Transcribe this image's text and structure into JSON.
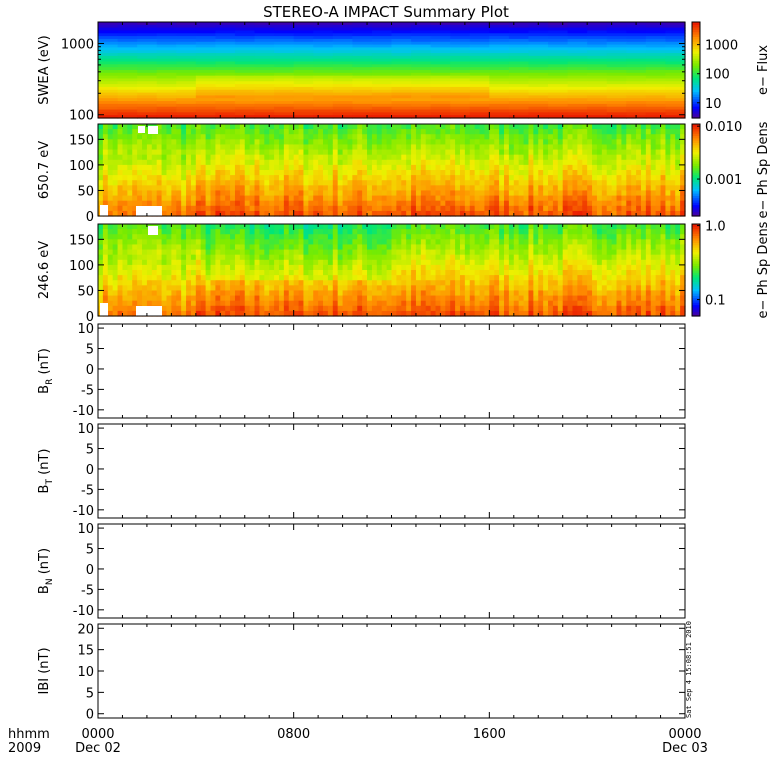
{
  "title": "STEREO-A IMPACT Summary Plot",
  "timestamp_stamp": "Sat Sep  4 15:08:51 2010",
  "x_axis": {
    "format_label": "hhmm",
    "year_label": "2009",
    "ticks": [
      {
        "time": "0000",
        "date": "Dec 02",
        "hour": 0
      },
      {
        "time": "0800",
        "date": "",
        "hour": 8
      },
      {
        "time": "1600",
        "date": "",
        "hour": 16
      },
      {
        "time": "0000",
        "date": "Dec 03",
        "hour": 24
      }
    ],
    "range_hours": [
      0,
      24
    ]
  },
  "chart_data": [
    {
      "type": "heatmap",
      "panel": "swea",
      "ylabel": "SWEA (eV)",
      "yscale": "log",
      "ylim": [
        90,
        2000
      ],
      "y_ticks": [
        {
          "value": 100,
          "label": "100"
        },
        {
          "value": 1000,
          "label": "1000"
        }
      ],
      "colorbar": {
        "label": "e− Flux",
        "scale": "log",
        "range": [
          3,
          6000
        ],
        "ticks": [
          {
            "value": 10,
            "label": "10"
          },
          {
            "value": 100,
            "label": "100"
          },
          {
            "value": 1000,
            "label": "1000"
          }
        ]
      },
      "description_colors": "high flux (red) at low energy, low flux (blue/purple) near 2000 eV"
    },
    {
      "type": "heatmap",
      "panel": "pad650",
      "ylabel": "650.7 eV",
      "ylim": [
        0,
        180
      ],
      "y_ticks": [
        {
          "value": 0,
          "label": "0"
        },
        {
          "value": 50,
          "label": "50"
        },
        {
          "value": 100,
          "label": "100"
        },
        {
          "value": 150,
          "label": "150"
        }
      ],
      "colorbar": {
        "label": "e− Ph Sp Dens",
        "scale": "log",
        "range": [
          0.0002,
          0.011
        ],
        "ticks": [
          {
            "value": 0.001,
            "label": "0.001"
          },
          {
            "value": 0.01,
            "label": "0.010"
          }
        ]
      }
    },
    {
      "type": "heatmap",
      "panel": "pad246",
      "ylabel": "246.6 eV",
      "ylim": [
        0,
        180
      ],
      "y_ticks": [
        {
          "value": 0,
          "label": "0"
        },
        {
          "value": 50,
          "label": "50"
        },
        {
          "value": 100,
          "label": "100"
        },
        {
          "value": 150,
          "label": "150"
        }
      ],
      "colorbar": {
        "label": "e− Ph Sp Dens",
        "scale": "log",
        "range": [
          0.06,
          1.05
        ],
        "ticks": [
          {
            "value": 0.1,
            "label": "0.1"
          },
          {
            "value": 1.0,
            "label": "1.0"
          }
        ]
      }
    },
    {
      "type": "line",
      "panel": "br",
      "ylabel_main": "B",
      "ylabel_sub": "R",
      "ylabel_unit": " (nT)",
      "ylim": [
        -12,
        11
      ],
      "y_ticks": [
        {
          "value": -10,
          "label": "-10"
        },
        {
          "value": -5,
          "label": "-5"
        },
        {
          "value": 0,
          "label": "0"
        },
        {
          "value": 5,
          "label": "5"
        },
        {
          "value": 10,
          "label": "10"
        }
      ],
      "series": []
    },
    {
      "type": "line",
      "panel": "bt",
      "ylabel_main": "B",
      "ylabel_sub": "T",
      "ylabel_unit": " (nT)",
      "ylim": [
        -12,
        11
      ],
      "y_ticks": [
        {
          "value": -10,
          "label": "-10"
        },
        {
          "value": -5,
          "label": "-5"
        },
        {
          "value": 0,
          "label": "0"
        },
        {
          "value": 5,
          "label": "5"
        },
        {
          "value": 10,
          "label": "10"
        }
      ],
      "series": []
    },
    {
      "type": "line",
      "panel": "bn",
      "ylabel_main": "B",
      "ylabel_sub": "N",
      "ylabel_unit": " (nT)",
      "ylim": [
        -12,
        11
      ],
      "y_ticks": [
        {
          "value": -10,
          "label": "-10"
        },
        {
          "value": -5,
          "label": "-5"
        },
        {
          "value": 0,
          "label": "0"
        },
        {
          "value": 5,
          "label": "5"
        },
        {
          "value": 10,
          "label": "10"
        }
      ],
      "series": []
    },
    {
      "type": "line",
      "panel": "bmag",
      "ylabel_main": "IBI (nT)",
      "ylabel_sub": "",
      "ylabel_unit": "",
      "ylim": [
        -1,
        21
      ],
      "y_ticks": [
        {
          "value": 0,
          "label": "0"
        },
        {
          "value": 5,
          "label": "5"
        },
        {
          "value": 10,
          "label": "10"
        },
        {
          "value": 15,
          "label": "15"
        },
        {
          "value": 20,
          "label": "20"
        }
      ],
      "series": []
    }
  ]
}
